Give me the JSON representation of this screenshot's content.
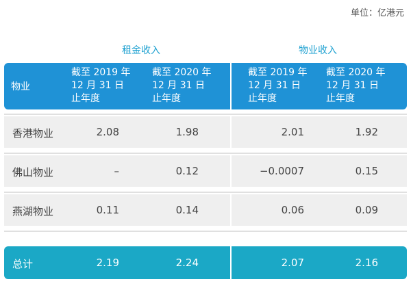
{
  "unit": "单位：亿港元",
  "groups": {
    "rent": "租金收入",
    "property": "物业收入"
  },
  "header": {
    "label": "物业",
    "cols": [
      "截至 2019 年\n12 月 31 日\n止年度",
      "截至 2020 年\n12 月 31 日\n止年度",
      "截至 2019 年\n12 月 31 日\n止年度",
      "截至 2020 年\n12 月 31 日\n止年度"
    ]
  },
  "rows": [
    {
      "label": "香港物业",
      "v": [
        "2.08",
        "1.98",
        "2.01",
        "1.92"
      ]
    },
    {
      "label": "佛山物业",
      "v": [
        "–",
        "0.12",
        "−0.0007",
        "0.15"
      ]
    },
    {
      "label": "燕湖物业",
      "v": [
        "0.11",
        "0.14",
        "0.06",
        "0.09"
      ]
    }
  ],
  "total": {
    "label": "总计",
    "v": [
      "2.19",
      "2.24",
      "2.07",
      "2.16"
    ]
  },
  "colors": {
    "header": "#1f92d6",
    "total": "#1ba8c6",
    "group_title": "#1a9fd0",
    "row": "#efefef"
  }
}
